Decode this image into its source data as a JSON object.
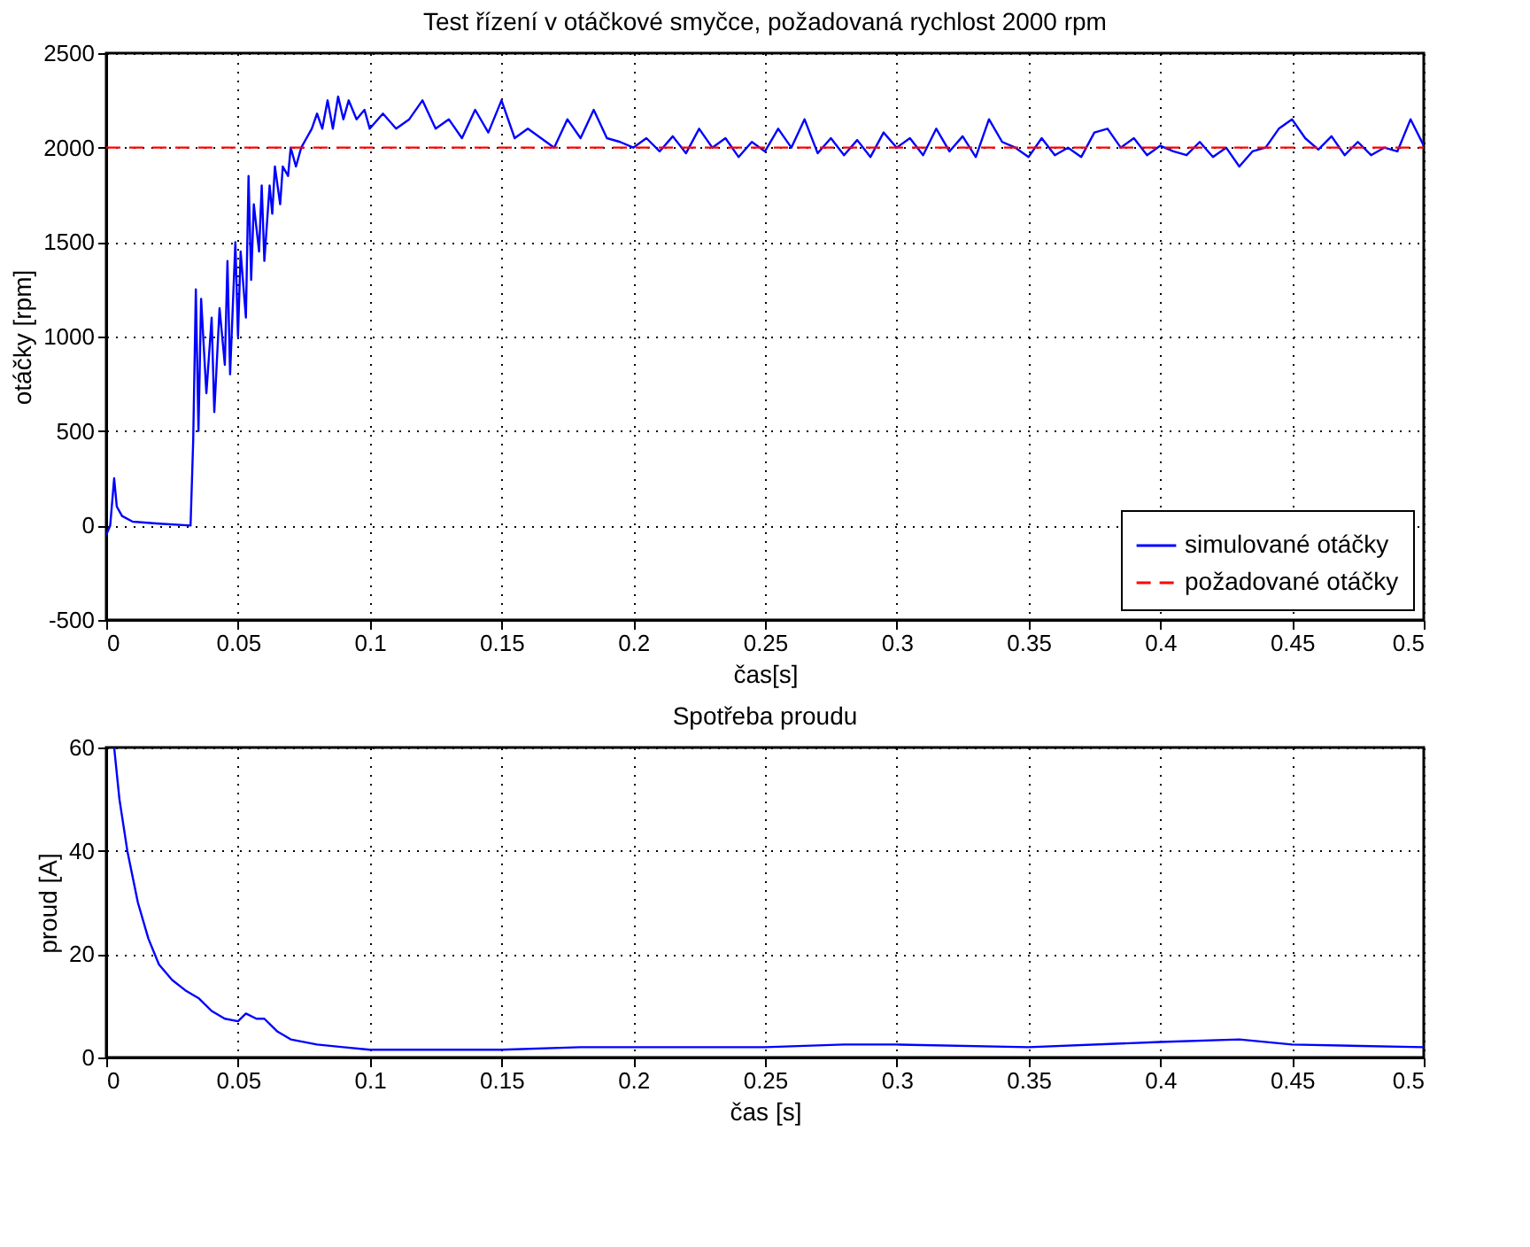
{
  "chart_data": [
    {
      "type": "line",
      "title": "Test řízení v otáčkové smyčce, požadovaná rychlost 2000 rpm",
      "xlabel": "čas[s]",
      "ylabel": "otáčky [rpm]",
      "xlim": [
        0,
        0.5
      ],
      "xticks": [
        0,
        0.05,
        0.1,
        0.15,
        0.2,
        0.25,
        0.3,
        0.35,
        0.4,
        0.45,
        0.5
      ],
      "ylim": [
        -500,
        2500
      ],
      "yticks": [
        -500,
        0,
        500,
        1000,
        1500,
        2000,
        2500
      ],
      "grid": true,
      "legend": "bottom right",
      "series": [
        {
          "name": "simulované otáčky",
          "color": "#0000ff",
          "line_style": "solid",
          "x": [
            0,
            0.0015,
            0.003,
            0.004,
            0.006,
            0.01,
            0.02,
            0.032,
            0.033,
            0.034,
            0.035,
            0.036,
            0.038,
            0.04,
            0.041,
            0.043,
            0.045,
            0.046,
            0.047,
            0.049,
            0.05,
            0.051,
            0.053,
            0.054,
            0.055,
            0.056,
            0.058,
            0.059,
            0.06,
            0.062,
            0.063,
            0.064,
            0.066,
            0.067,
            0.069,
            0.07,
            0.072,
            0.074,
            0.076,
            0.078,
            0.08,
            0.082,
            0.084,
            0.086,
            0.088,
            0.09,
            0.092,
            0.095,
            0.098,
            0.1,
            0.105,
            0.11,
            0.115,
            0.12,
            0.125,
            0.13,
            0.135,
            0.14,
            0.145,
            0.15,
            0.155,
            0.16,
            0.165,
            0.17,
            0.175,
            0.18,
            0.185,
            0.19,
            0.195,
            0.2,
            0.205,
            0.21,
            0.215,
            0.22,
            0.225,
            0.23,
            0.235,
            0.24,
            0.245,
            0.25,
            0.255,
            0.26,
            0.265,
            0.27,
            0.275,
            0.28,
            0.285,
            0.29,
            0.295,
            0.3,
            0.305,
            0.31,
            0.315,
            0.32,
            0.325,
            0.33,
            0.335,
            0.34,
            0.345,
            0.35,
            0.355,
            0.36,
            0.365,
            0.37,
            0.375,
            0.38,
            0.385,
            0.39,
            0.395,
            0.4,
            0.405,
            0.41,
            0.415,
            0.42,
            0.425,
            0.43,
            0.435,
            0.44,
            0.445,
            0.45,
            0.455,
            0.46,
            0.465,
            0.47,
            0.475,
            0.48,
            0.485,
            0.49,
            0.495,
            0.5
          ],
          "values": [
            -50,
            0,
            250,
            100,
            50,
            20,
            10,
            0,
            450,
            1250,
            500,
            1200,
            700,
            1100,
            600,
            1150,
            850,
            1400,
            800,
            1500,
            1000,
            1450,
            1100,
            1850,
            1300,
            1700,
            1450,
            1800,
            1400,
            1800,
            1650,
            1900,
            1700,
            1900,
            1850,
            2000,
            1900,
            2000,
            2050,
            2100,
            2180,
            2100,
            2250,
            2100,
            2270,
            2150,
            2250,
            2150,
            2200,
            2100,
            2180,
            2100,
            2150,
            2250,
            2100,
            2150,
            2050,
            2200,
            2080,
            2250,
            2050,
            2100,
            2050,
            2000,
            2150,
            2050,
            2200,
            2050,
            2030,
            2000,
            2050,
            1980,
            2060,
            1970,
            2100,
            2000,
            2050,
            1950,
            2030,
            1980,
            2100,
            2000,
            2150,
            1970,
            2050,
            1960,
            2040,
            1950,
            2080,
            2000,
            2050,
            1960,
            2100,
            1980,
            2060,
            1950,
            2150,
            2030,
            2000,
            1950,
            2050,
            1960,
            2000,
            1950,
            2080,
            2100,
            2000,
            2050,
            1960,
            2010,
            1980,
            1960,
            2030,
            1950,
            2000,
            1900,
            1980,
            2000,
            2100,
            2150,
            2050,
            1990,
            2060,
            1960,
            2030,
            1960,
            2000,
            1980,
            2150,
            2010
          ]
        },
        {
          "name": "požadované otáčky",
          "color": "#ff0000",
          "line_style": "dashed",
          "x": [
            0,
            0.5
          ],
          "values": [
            2000,
            2000
          ]
        }
      ]
    },
    {
      "type": "line",
      "title": "Spotřeba proudu",
      "xlabel": "čas [s]",
      "ylabel": "proud [A]",
      "xlim": [
        0,
        0.5
      ],
      "xticks": [
        0,
        0.05,
        0.1,
        0.15,
        0.2,
        0.25,
        0.3,
        0.35,
        0.4,
        0.45,
        0.5
      ],
      "ylim": [
        0,
        60
      ],
      "yticks": [
        0,
        20,
        40,
        60
      ],
      "grid": true,
      "series": [
        {
          "color": "#0000ff",
          "line_style": "solid",
          "x": [
            0.003,
            0.005,
            0.008,
            0.012,
            0.016,
            0.02,
            0.025,
            0.03,
            0.035,
            0.04,
            0.045,
            0.05,
            0.053,
            0.057,
            0.06,
            0.065,
            0.07,
            0.08,
            0.09,
            0.1,
            0.12,
            0.15,
            0.18,
            0.2,
            0.25,
            0.28,
            0.3,
            0.35,
            0.4,
            0.43,
            0.45,
            0.5
          ],
          "values": [
            60,
            50,
            40,
            30,
            23,
            18,
            15,
            13,
            11.5,
            9,
            7.5,
            7,
            8.5,
            7.5,
            7.5,
            5,
            3.5,
            2.5,
            2,
            1.5,
            1.5,
            1.5,
            2,
            2,
            2,
            2.5,
            2.5,
            2,
            3,
            3.5,
            2.5,
            2
          ]
        }
      ]
    }
  ]
}
